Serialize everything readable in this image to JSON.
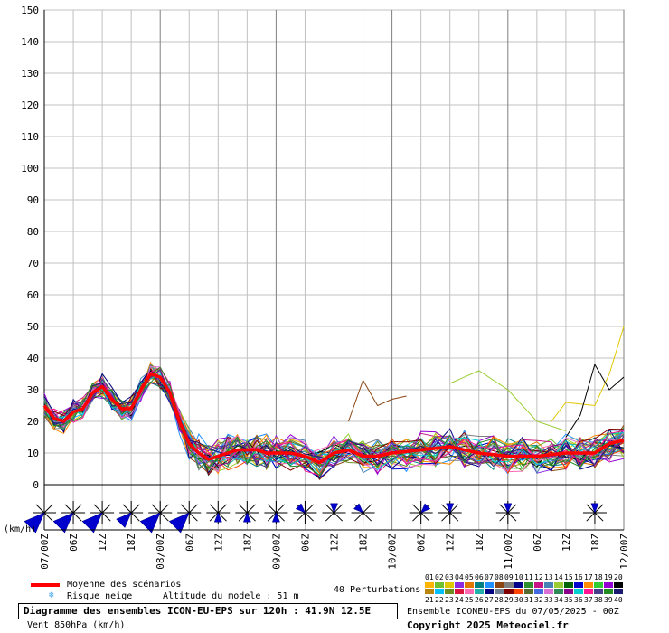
{
  "chart_data": {
    "type": "line",
    "title": "Diagramme des ensembles ICON-EU-EPS sur 120h : 41.9N 12.5E",
    "subtitle": "Vent 850hPa (km/h)",
    "ylabel": "(km/h)",
    "ylim": [
      0,
      150
    ],
    "y_ticks": [
      0,
      10,
      20,
      30,
      40,
      50,
      60,
      70,
      80,
      90,
      100,
      110,
      120,
      130,
      140,
      150
    ],
    "xlim_hours": [
      0,
      120
    ],
    "x_tick_hours": [
      0,
      6,
      12,
      18,
      24,
      30,
      36,
      42,
      48,
      54,
      60,
      66,
      72,
      78,
      84,
      90,
      96,
      102,
      108,
      114,
      120
    ],
    "x_tick_labels": [
      "07/00Z",
      "06Z",
      "12Z",
      "18Z",
      "08/00Z",
      "06Z",
      "12Z",
      "18Z",
      "09/00Z",
      "06Z",
      "12Z",
      "18Z",
      "10/00Z",
      "06Z",
      "12Z",
      "18Z",
      "11/00Z",
      "06Z",
      "12Z",
      "18Z",
      "12/00Z"
    ],
    "major_tick_hours": [
      0,
      24,
      48,
      72,
      96,
      120
    ],
    "grid": true,
    "mean_series": {
      "name": "Moyenne des scénarios",
      "color": "#ff0000",
      "hours": [
        0,
        2,
        4,
        6,
        8,
        10,
        12,
        14,
        16,
        18,
        20,
        22,
        24,
        26,
        28,
        30,
        32,
        34,
        36,
        38,
        40,
        42,
        44,
        46,
        48,
        51,
        54,
        57,
        60,
        63,
        66,
        69,
        72,
        78,
        84,
        90,
        96,
        102,
        108,
        114,
        117,
        120
      ],
      "values": [
        25,
        21,
        20,
        23,
        24,
        29,
        31,
        27,
        24,
        24,
        30,
        35,
        34,
        29,
        20,
        13,
        10,
        8,
        9,
        10,
        11,
        11,
        11,
        10,
        10,
        10,
        9,
        7,
        10,
        11,
        9,
        9,
        10,
        11,
        12,
        10,
        9,
        9,
        10,
        10,
        13,
        14
      ]
    },
    "perturbation_hours": [
      0,
      2,
      4,
      6,
      8,
      10,
      12,
      14,
      16,
      18,
      20,
      22,
      24,
      26,
      28,
      30,
      32,
      34,
      36,
      38,
      40,
      42,
      44,
      46,
      48,
      51,
      54,
      57,
      60,
      63,
      66,
      69,
      72,
      75,
      78,
      81,
      84,
      87,
      90,
      93,
      96,
      99,
      102,
      105,
      108,
      111,
      114,
      117,
      120
    ],
    "base_profile": [
      25,
      21,
      20,
      23,
      24,
      29,
      31,
      27,
      24,
      24,
      30,
      35,
      34,
      29,
      20,
      13,
      10,
      8,
      9,
      10,
      11,
      11,
      11,
      10,
      10,
      10,
      9,
      7,
      10,
      11,
      9,
      9,
      10,
      10,
      11,
      11,
      12,
      11,
      10,
      10,
      9,
      9,
      9,
      9,
      10,
      10,
      10,
      12,
      14
    ],
    "notable_members": [
      {
        "member": "14",
        "hours": [
          84,
          90,
          96,
          102,
          108
        ],
        "values": [
          32,
          36,
          30,
          20,
          17
        ]
      },
      {
        "member": "03",
        "hours": [
          105,
          108,
          114,
          117,
          120
        ],
        "values": [
          20,
          26,
          25,
          35,
          50
        ]
      },
      {
        "member": "20",
        "hours": [
          108,
          111,
          114,
          117,
          120
        ],
        "values": [
          15,
          22,
          38,
          30,
          34
        ]
      },
      {
        "member": "08",
        "hours": [
          63,
          66,
          69,
          72,
          75
        ],
        "values": [
          20,
          33,
          25,
          27,
          28
        ]
      }
    ],
    "wind_roses_hours": [
      0,
      12,
      24,
      36,
      48,
      66,
      84,
      96,
      114
    ],
    "wind_rose_labels": [
      "07/00Z",
      "07/12Z",
      "08/00Z",
      "08/12Z",
      "09/00Z",
      "09/18Z",
      "10/12Z",
      "11/00Z",
      "11/18Z"
    ],
    "wind_direction_sectors": [
      {
        "hour": 0,
        "direction": "SW",
        "strength": "strong"
      },
      {
        "hour": 6,
        "direction": "SW",
        "strength": "strong"
      },
      {
        "hour": 12,
        "direction": "SW",
        "strength": "strong"
      },
      {
        "hour": 18,
        "direction": "SW",
        "strength": "medium"
      },
      {
        "hour": 24,
        "direction": "SW",
        "strength": "strong"
      },
      {
        "hour": 30,
        "direction": "SW",
        "strength": "strong"
      },
      {
        "hour": 36,
        "direction": "S",
        "strength": "weak"
      },
      {
        "hour": 42,
        "direction": "S",
        "strength": "weak"
      },
      {
        "hour": 48,
        "direction": "S",
        "strength": "weak"
      },
      {
        "hour": 54,
        "direction": "NW",
        "strength": "weak"
      },
      {
        "hour": 60,
        "direction": "N",
        "strength": "weak"
      },
      {
        "hour": 66,
        "direction": "NW",
        "strength": "weak"
      },
      {
        "hour": 78,
        "direction": "NE",
        "strength": "weak"
      },
      {
        "hour": 84,
        "direction": "N",
        "strength": "weak"
      },
      {
        "hour": 96,
        "direction": "N",
        "strength": "weak"
      },
      {
        "hour": 114,
        "direction": "N",
        "strength": "weak"
      }
    ]
  },
  "legend": {
    "mean_label": "Moyenne des scénarios",
    "snow_label": "Risque neige",
    "altitude_label": "Altitude du modele : 51 m",
    "perturbations_label": "40 Perturbations",
    "member_row1": [
      "01",
      "02",
      "03",
      "04",
      "05",
      "06",
      "07",
      "08",
      "09",
      "10",
      "11",
      "12",
      "13",
      "14",
      "15",
      "16",
      "17",
      "18",
      "19",
      "20"
    ],
    "member_row2": [
      "21",
      "22",
      "23",
      "24",
      "25",
      "26",
      "27",
      "28",
      "29",
      "30",
      "31",
      "32",
      "33",
      "34",
      "35",
      "36",
      "37",
      "38",
      "39",
      "40"
    ],
    "member_colors_row1": [
      "#ffb400",
      "#6fbf2f",
      "#e0c800",
      "#8a2be2",
      "#e07800",
      "#008080",
      "#1e90ff",
      "#8b4513",
      "#7f7f7f",
      "#00008b",
      "#2f8f2f",
      "#c71585",
      "#4682b4",
      "#9acd32",
      "#006400",
      "#0000cd",
      "#ff8c00",
      "#32cd32",
      "#9400d3",
      "#000000"
    ],
    "member_colors_row2": [
      "#b8860b",
      "#00bfff",
      "#6b8e23",
      "#dc143c",
      "#ff69b4",
      "#20b2aa",
      "#000080",
      "#708090",
      "#800000",
      "#ff4500",
      "#556b2f",
      "#4169e1",
      "#da70d6",
      "#2e8b57",
      "#8b008b",
      "#00ced1",
      "#ff1493",
      "#483d8b",
      "#228b22",
      "#191970"
    ]
  },
  "footer": {
    "title": "Diagramme des ensembles ICON-EU-EPS sur 120h : 41.9N 12.5E",
    "subtitle": "Vent 850hPa (km/h)",
    "run": "Ensemble ICONEU-EPS du 07/05/2025 - 00Z",
    "copyright": "Copyright 2025 Meteociel.fr"
  }
}
